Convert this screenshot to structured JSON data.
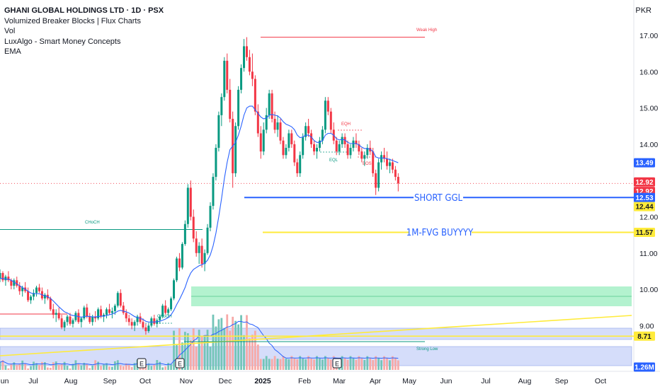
{
  "header": {
    "title": "GHANI GLOBAL HOLDINGS LTD · 1D · PSX",
    "indicators": [
      "Volumized Breaker Blocks | Flux Charts",
      "Vol",
      "LuxAlgo - Smart Money Concepts",
      "EMA"
    ],
    "currency": "PKR"
  },
  "chart_data": {
    "type": "candlestick",
    "ylim": [
      8.0,
      17.6
    ],
    "y_ticks": [
      "17.00",
      "16.00",
      "15.00",
      "14.00",
      "12.00",
      "11.00",
      "10.00",
      "9.00"
    ],
    "x_ticks": [
      "Jun",
      "Jul",
      "Aug",
      "Sep",
      "Oct",
      "Nov",
      "Dec",
      "2025",
      "Feb",
      "Mar",
      "Apr",
      "May",
      "Jun",
      "Jul",
      "Aug",
      "Sep",
      "Oct"
    ],
    "price_tags": [
      {
        "label": "13.49",
        "value": 13.49,
        "bg": "#2962ff",
        "fg": "#ffffff"
      },
      {
        "label": "12.92",
        "value": 12.96,
        "bg": "#f23645",
        "fg": "#ffffff"
      },
      {
        "label": "12.92",
        "value": 12.7,
        "bg": "#f23645",
        "fg": "#ffffff"
      },
      {
        "label": "12.53",
        "value": 12.53,
        "bg": "#2962ff",
        "fg": "#ffffff"
      },
      {
        "label": "12.44",
        "value": 12.28,
        "bg": "#ffeb3b",
        "fg": "#131722"
      },
      {
        "label": "11.57",
        "value": 11.57,
        "bg": "#ffeb3b",
        "fg": "#131722"
      },
      {
        "label": "8.71",
        "value": 8.71,
        "bg": "#ffeb3b",
        "fg": "#131722"
      },
      {
        "label": "1.26M",
        "value": 8.0,
        "bg": "#2962ff",
        "fg": "#ffffff"
      }
    ],
    "annotations": {
      "short": "SHORT GGL",
      "buy": "1M-FVG BUYYYY",
      "choch_big": "CHoCH",
      "choch_small": "CHoCH",
      "weak_high": "Weak High",
      "strong_low": "Strong Low",
      "eqh": "EQH",
      "eql": "EQL",
      "bos": "BOS",
      "earnings": "E"
    },
    "levels": {
      "weak_high": 16.95,
      "short": 12.53,
      "buy": 11.57,
      "choch": 11.65,
      "strong_low": 8.71,
      "current": 12.92
    },
    "candles": [
      [
        10.3,
        10.55,
        10.2,
        10.45
      ],
      [
        10.45,
        10.5,
        10.2,
        10.25
      ],
      [
        10.25,
        10.4,
        10.1,
        10.35
      ],
      [
        10.35,
        10.5,
        10.2,
        10.25
      ],
      [
        10.25,
        10.3,
        10.0,
        10.1
      ],
      [
        10.1,
        10.3,
        10.0,
        10.25
      ],
      [
        10.25,
        10.35,
        10.05,
        10.1
      ],
      [
        10.1,
        10.2,
        9.85,
        9.95
      ],
      [
        9.95,
        10.1,
        9.8,
        10.05
      ],
      [
        10.05,
        10.2,
        9.9,
        9.95
      ],
      [
        9.95,
        10.05,
        9.65,
        9.7
      ],
      [
        9.7,
        9.85,
        9.6,
        9.8
      ],
      [
        9.8,
        10.0,
        9.7,
        9.9
      ],
      [
        9.9,
        10.1,
        9.8,
        10.05
      ],
      [
        10.05,
        10.15,
        9.9,
        9.95
      ],
      [
        9.95,
        10.05,
        9.7,
        9.75
      ],
      [
        9.75,
        9.9,
        9.6,
        9.85
      ],
      [
        9.85,
        10.0,
        9.7,
        9.75
      ],
      [
        9.75,
        9.8,
        9.4,
        9.45
      ],
      [
        9.45,
        9.6,
        9.2,
        9.3
      ],
      [
        9.3,
        9.45,
        9.1,
        9.35
      ],
      [
        9.35,
        9.5,
        9.15,
        9.2
      ],
      [
        9.2,
        9.3,
        8.9,
        8.95
      ],
      [
        8.95,
        9.15,
        8.85,
        9.1
      ],
      [
        9.1,
        9.3,
        9.0,
        9.25
      ],
      [
        9.25,
        9.35,
        9.0,
        9.05
      ],
      [
        9.05,
        9.2,
        8.95,
        9.15
      ],
      [
        9.15,
        9.4,
        9.1,
        9.35
      ],
      [
        9.35,
        9.45,
        9.05,
        9.1
      ],
      [
        9.1,
        9.25,
        8.95,
        9.2
      ],
      [
        9.2,
        9.55,
        9.15,
        9.5
      ],
      [
        9.5,
        9.6,
        9.2,
        9.25
      ],
      [
        9.25,
        9.35,
        9.05,
        9.1
      ],
      [
        9.1,
        9.3,
        9.0,
        9.25
      ],
      [
        9.25,
        9.4,
        9.1,
        9.2
      ],
      [
        9.2,
        9.5,
        9.15,
        9.45
      ],
      [
        9.45,
        9.55,
        9.2,
        9.25
      ],
      [
        9.25,
        9.35,
        9.1,
        9.3
      ],
      [
        9.3,
        9.5,
        9.2,
        9.45
      ],
      [
        9.45,
        9.6,
        9.3,
        9.35
      ],
      [
        9.35,
        9.5,
        9.2,
        9.4
      ],
      [
        9.4,
        9.6,
        9.3,
        9.55
      ],
      [
        9.55,
        9.95,
        9.5,
        9.9
      ],
      [
        9.9,
        10.0,
        9.5,
        9.55
      ],
      [
        9.55,
        9.65,
        9.3,
        9.35
      ],
      [
        9.35,
        9.45,
        9.1,
        9.2
      ],
      [
        9.2,
        9.3,
        9.0,
        9.1
      ],
      [
        9.1,
        9.2,
        8.9,
        9.0
      ],
      [
        9.0,
        9.15,
        8.85,
        9.1
      ],
      [
        9.1,
        9.3,
        9.0,
        9.25
      ],
      [
        9.25,
        9.35,
        9.05,
        9.1
      ],
      [
        9.1,
        9.2,
        8.9,
        8.95
      ],
      [
        8.95,
        9.05,
        8.75,
        8.85
      ],
      [
        8.85,
        9.05,
        8.8,
        9.0
      ],
      [
        9.0,
        9.25,
        8.95,
        9.2
      ],
      [
        9.2,
        9.3,
        9.0,
        9.05
      ],
      [
        9.05,
        9.2,
        8.95,
        9.15
      ],
      [
        9.15,
        9.3,
        9.05,
        9.25
      ],
      [
        9.25,
        9.6,
        9.2,
        9.55
      ],
      [
        9.55,
        9.7,
        9.3,
        9.35
      ],
      [
        9.35,
        9.5,
        9.25,
        9.45
      ],
      [
        9.45,
        9.8,
        9.4,
        9.75
      ],
      [
        9.75,
        10.3,
        9.7,
        10.25
      ],
      [
        10.25,
        10.9,
        10.2,
        10.85
      ],
      [
        10.85,
        11.0,
        10.5,
        10.6
      ],
      [
        10.6,
        11.3,
        10.55,
        11.25
      ],
      [
        11.25,
        11.9,
        11.2,
        11.8
      ],
      [
        11.8,
        12.9,
        11.7,
        12.8
      ],
      [
        12.8,
        13.0,
        11.9,
        12.0
      ],
      [
        12.0,
        12.2,
        11.3,
        11.4
      ],
      [
        11.4,
        11.6,
        10.9,
        11.0
      ],
      [
        11.0,
        11.3,
        10.7,
        11.2
      ],
      [
        11.2,
        11.4,
        10.6,
        10.7
      ],
      [
        10.7,
        11.1,
        10.5,
        11.0
      ],
      [
        11.0,
        11.8,
        10.95,
        11.7
      ],
      [
        11.7,
        12.4,
        11.6,
        12.3
      ],
      [
        12.3,
        13.2,
        12.2,
        13.1
      ],
      [
        13.1,
        14.0,
        13.0,
        13.9
      ],
      [
        13.9,
        14.9,
        13.8,
        14.8
      ],
      [
        14.8,
        15.4,
        14.5,
        15.3
      ],
      [
        15.3,
        16.4,
        15.2,
        16.3
      ],
      [
        16.3,
        16.5,
        15.4,
        15.5
      ],
      [
        15.5,
        15.8,
        14.6,
        14.7
      ],
      [
        14.7,
        14.9,
        12.8,
        13.2
      ],
      [
        13.2,
        14.6,
        13.1,
        14.5
      ],
      [
        14.5,
        15.6,
        14.4,
        15.5
      ],
      [
        15.5,
        16.2,
        15.4,
        16.1
      ],
      [
        16.1,
        16.9,
        16.0,
        16.7
      ],
      [
        16.7,
        16.95,
        16.3,
        16.4
      ],
      [
        16.4,
        16.6,
        15.9,
        16.0
      ],
      [
        16.0,
        16.5,
        15.6,
        15.8
      ],
      [
        15.8,
        15.9,
        14.8,
        14.9
      ],
      [
        14.9,
        15.1,
        14.2,
        14.3
      ],
      [
        14.3,
        14.5,
        13.6,
        13.8
      ],
      [
        13.8,
        14.6,
        13.7,
        14.4
      ],
      [
        14.4,
        15.0,
        14.3,
        14.8
      ],
      [
        14.8,
        15.5,
        14.7,
        15.4
      ],
      [
        15.4,
        15.5,
        14.6,
        14.7
      ],
      [
        14.7,
        14.9,
        14.3,
        14.4
      ],
      [
        14.4,
        14.8,
        14.2,
        14.6
      ],
      [
        14.6,
        14.7,
        14.0,
        14.1
      ],
      [
        14.1,
        14.2,
        13.6,
        13.7
      ],
      [
        13.7,
        14.0,
        13.6,
        13.9
      ],
      [
        13.9,
        14.4,
        13.8,
        14.3
      ],
      [
        14.3,
        14.4,
        13.9,
        14.0
      ],
      [
        14.0,
        14.1,
        13.4,
        13.5
      ],
      [
        13.5,
        13.6,
        13.1,
        13.2
      ],
      [
        13.2,
        13.8,
        13.1,
        13.7
      ],
      [
        13.7,
        14.3,
        13.6,
        14.2
      ],
      [
        14.2,
        14.6,
        14.1,
        14.5
      ],
      [
        14.5,
        14.7,
        14.2,
        14.3
      ],
      [
        14.3,
        14.4,
        13.9,
        14.0
      ],
      [
        14.0,
        14.1,
        13.7,
        13.8
      ],
      [
        13.8,
        14.0,
        13.6,
        13.9
      ],
      [
        13.9,
        14.2,
        13.8,
        14.1
      ],
      [
        14.1,
        14.5,
        14.0,
        14.4
      ],
      [
        14.4,
        15.3,
        14.3,
        15.2
      ],
      [
        15.2,
        15.3,
        14.8,
        14.9
      ],
      [
        14.9,
        15.0,
        14.3,
        14.4
      ],
      [
        14.4,
        14.6,
        14.0,
        14.1
      ],
      [
        14.1,
        14.2,
        13.7,
        13.8
      ],
      [
        13.8,
        14.1,
        13.7,
        14.0
      ],
      [
        14.0,
        14.3,
        13.9,
        14.2
      ],
      [
        14.2,
        14.3,
        13.9,
        14.0
      ],
      [
        14.0,
        14.1,
        13.6,
        13.7
      ],
      [
        13.7,
        14.0,
        13.6,
        13.9
      ],
      [
        13.9,
        14.2,
        13.8,
        14.1
      ],
      [
        14.1,
        14.3,
        13.9,
        14.0
      ],
      [
        14.0,
        14.1,
        13.7,
        13.8
      ],
      [
        13.8,
        13.9,
        13.5,
        13.6
      ],
      [
        13.6,
        13.8,
        13.4,
        13.7
      ],
      [
        13.7,
        14.0,
        13.6,
        13.9
      ],
      [
        13.9,
        14.1,
        13.7,
        13.8
      ],
      [
        13.8,
        13.9,
        13.1,
        13.2
      ],
      [
        13.2,
        13.3,
        12.6,
        12.8
      ],
      [
        12.8,
        13.6,
        12.7,
        13.5
      ],
      [
        13.5,
        13.8,
        13.3,
        13.7
      ],
      [
        13.7,
        13.9,
        13.5,
        13.6
      ],
      [
        13.6,
        13.8,
        13.3,
        13.4
      ],
      [
        13.4,
        13.6,
        13.2,
        13.5
      ],
      [
        13.5,
        13.6,
        13.2,
        13.3
      ],
      [
        13.3,
        13.4,
        13.0,
        13.1
      ],
      [
        13.1,
        13.2,
        12.7,
        12.92
      ]
    ],
    "volume": {
      "ylim": [
        0,
        3.3
      ]
    },
    "ema": [
      10.3,
      10.3,
      10.28,
      10.28,
      10.25,
      10.2,
      10.15,
      10.1,
      10.05,
      10.0,
      9.95,
      9.9,
      9.88,
      9.88,
      9.88,
      9.85,
      9.82,
      9.8,
      9.75,
      9.68,
      9.6,
      9.52,
      9.45,
      9.38,
      9.35,
      9.3,
      9.28,
      9.27,
      9.25,
      9.23,
      9.25,
      9.26,
      9.25,
      9.24,
      9.24,
      9.25,
      9.26,
      9.26,
      9.28,
      9.3,
      9.32,
      9.35,
      9.4,
      9.42,
      9.4,
      9.38,
      9.35,
      9.3,
      9.25,
      9.22,
      9.2,
      9.17,
      9.12,
      9.1,
      9.1,
      9.1,
      9.11,
      9.12,
      9.15,
      9.18,
      9.22,
      9.3,
      9.42,
      9.58,
      9.72,
      9.88,
      10.05,
      10.28,
      10.45,
      10.55,
      10.6,
      10.65,
      10.68,
      10.72,
      10.8,
      10.95,
      11.2,
      11.55,
      12.0,
      12.5,
      13.05,
      13.5,
      13.85,
      13.95,
      14.05,
      14.25,
      14.5,
      14.8,
      15.0,
      15.05,
      15.05,
      14.95,
      14.85,
      14.75,
      14.7,
      14.72,
      14.8,
      14.82,
      14.8,
      14.78,
      14.72,
      14.62,
      14.55,
      14.52,
      14.48,
      14.4,
      14.25,
      14.18,
      14.2,
      14.25,
      14.25,
      14.2,
      14.1,
      14.05,
      14.05,
      14.1,
      14.25,
      14.3,
      14.3,
      14.25,
      14.15,
      14.12,
      14.13,
      14.12,
      14.05,
      14.02,
      14.02,
      14.02,
      13.98,
      13.92,
      13.88,
      13.88,
      13.86,
      13.8,
      13.65,
      13.62,
      13.62,
      13.62,
      13.6,
      13.58,
      13.55,
      13.52,
      13.49
    ]
  }
}
